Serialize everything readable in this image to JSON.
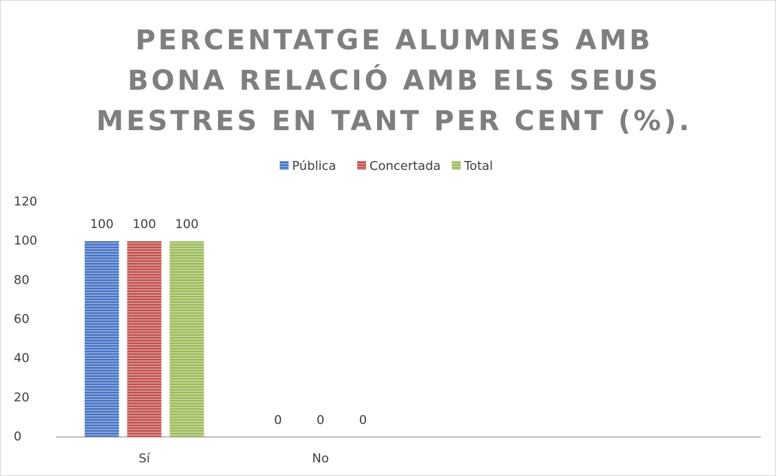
{
  "chart_data": {
    "type": "bar",
    "title": "PERCENTATGE ALUMNES AMB BONA RELACIÓ AMB ELS SEUS MESTRES EN TANT PER CENT (%).",
    "categories": [
      "Sí",
      "No",
      null,
      null
    ],
    "series": [
      {
        "name": "Pública",
        "color": "#4472c4",
        "values": [
          100,
          0,
          null,
          null
        ]
      },
      {
        "name": "Concertada",
        "color": "#c0504d",
        "values": [
          100,
          0,
          null,
          null
        ]
      },
      {
        "name": "Total",
        "color": "#9bbb59",
        "values": [
          100,
          0,
          null,
          null
        ]
      }
    ],
    "ylim": [
      0,
      120
    ],
    "yticks": [
      0,
      20,
      40,
      60,
      80,
      100,
      120
    ],
    "grid": false,
    "legend": "top"
  }
}
